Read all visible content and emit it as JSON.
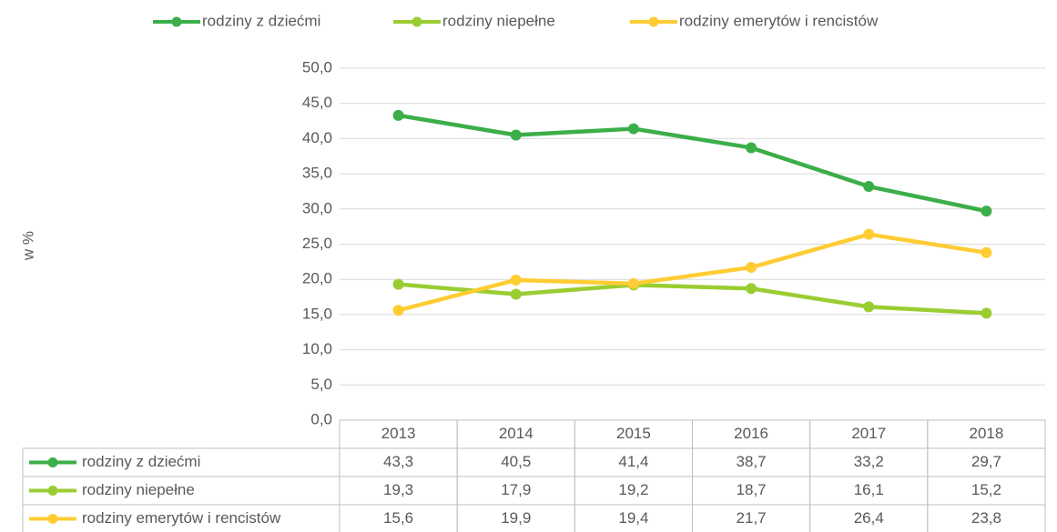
{
  "chart_data": {
    "type": "line",
    "y_label": "w %",
    "categories": [
      "2013",
      "2014",
      "2015",
      "2016",
      "2017",
      "2018"
    ],
    "series": [
      {
        "name": "rodziny z dziećmi",
        "color": "#3cae49",
        "values": [
          43.3,
          40.5,
          41.4,
          38.7,
          33.2,
          29.7
        ],
        "value_labels": [
          "43,3",
          "40,5",
          "41,4",
          "38,7",
          "33,2",
          "29,7"
        ]
      },
      {
        "name": "rodziny niepełne",
        "color": "#9acd32",
        "values": [
          19.3,
          17.9,
          19.2,
          18.7,
          16.1,
          15.2
        ],
        "value_labels": [
          "19,3",
          "17,9",
          "19,2",
          "18,7",
          "16,1",
          "15,2"
        ]
      },
      {
        "name": "rodziny emerytów i rencistów",
        "color": "#ffcc33",
        "values": [
          15.6,
          19.9,
          19.4,
          21.7,
          26.4,
          23.8
        ],
        "value_labels": [
          "15,6",
          "19,9",
          "19,4",
          "21,7",
          "26,4",
          "23,8"
        ]
      }
    ],
    "ylim": [
      0,
      50
    ],
    "yticks": [
      {
        "value": 0,
        "label": "0,0"
      },
      {
        "value": 5,
        "label": "5,0"
      },
      {
        "value": 10,
        "label": "10,0"
      },
      {
        "value": 15,
        "label": "15,0"
      },
      {
        "value": 20,
        "label": "20,0"
      },
      {
        "value": 25,
        "label": "25,0"
      },
      {
        "value": 30,
        "label": "30,0"
      },
      {
        "value": 35,
        "label": "35,0"
      },
      {
        "value": 40,
        "label": "40,0"
      },
      {
        "value": 45,
        "label": "45,0"
      },
      {
        "value": 50,
        "label": "50,0"
      }
    ],
    "grid": true,
    "legend": "top",
    "data_table": true
  }
}
